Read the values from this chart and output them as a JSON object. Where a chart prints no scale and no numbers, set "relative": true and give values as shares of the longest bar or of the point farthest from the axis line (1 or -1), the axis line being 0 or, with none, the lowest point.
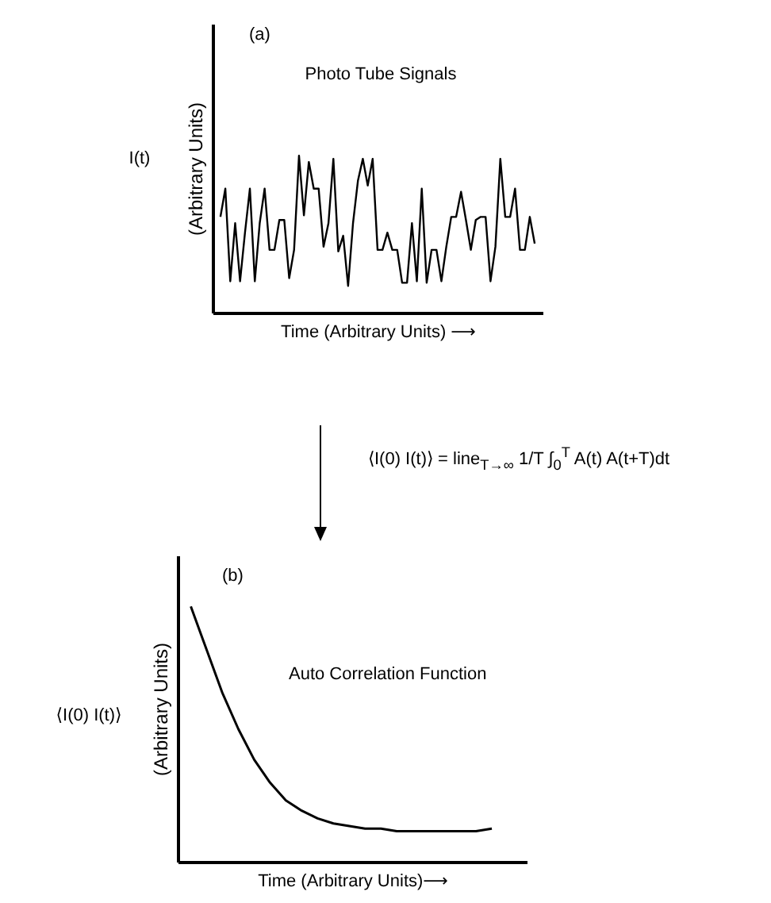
{
  "chart_data": [
    {
      "type": "line",
      "relative": true,
      "title": "Photo Tube Signals",
      "xlabel": "Time (Arbitrary Units) ⟶",
      "ylabel": "(Arbitrary Units)",
      "annotations": [
        "(a)",
        "I(t)"
      ],
      "categories": [
        null,
        null,
        null,
        null,
        null,
        null,
        null,
        null,
        null,
        null,
        null,
        null,
        null,
        null,
        null,
        null,
        null,
        null,
        null,
        null,
        null,
        null,
        null,
        null,
        null,
        null,
        null,
        null,
        null,
        null,
        null,
        null,
        null,
        null,
        null,
        null,
        null,
        null,
        null,
        null,
        null,
        null,
        null,
        null,
        null,
        null,
        null,
        null,
        null,
        null,
        null,
        null,
        null,
        null,
        null,
        null,
        null,
        null,
        null,
        null,
        null,
        null,
        null,
        null,
        null
      ],
      "series": [
        {
          "color": "#000000",
          "values": [
            0.61,
            0.79,
            0.2,
            0.57,
            0.2,
            0.51,
            0.79,
            0.2,
            0.57,
            0.79,
            0.4,
            0.4,
            0.59,
            0.59,
            0.22,
            0.4,
            1,
            0.62,
            0.96,
            0.79,
            0.79,
            0.42,
            0.57,
            0.98,
            0.39,
            0.49,
            0.17,
            0.57,
            0.84,
            0.98,
            0.81,
            0.98,
            0.4,
            0.4,
            0.51,
            0.4,
            0.4,
            0.19,
            0.19,
            0.57,
            0.2,
            0.79,
            0.19,
            0.4,
            0.4,
            0.2,
            0.42,
            0.61,
            0.61,
            0.77,
            0.59,
            0.4,
            0.59,
            0.61,
            0.61,
            0.2,
            0.42,
            0.98,
            0.61,
            0.61,
            0.79,
            0.4,
            0.4,
            0.61,
            0.44
          ]
        }
      ]
    },
    {
      "type": "line",
      "relative": true,
      "title": "Auto Correlation Function",
      "xlabel": "Time (Arbitrary Units)⟶",
      "ylabel": "(Arbitrary Units)",
      "annotations": [
        "(b)",
        "⟨I(0) I(t)⟩",
        "⟨I(0) I(t)⟩ = line$_{T→∞}$ 1/T ∫$_{0}$$^{T}$ A(t) A(t+T)dt"
      ],
      "categories": [
        null,
        null,
        null,
        null,
        null,
        null,
        null,
        null,
        null,
        null,
        null,
        null,
        null,
        null,
        null,
        null,
        null,
        null,
        null,
        null
      ],
      "series": [
        {
          "color": "#000000",
          "values": [
            1,
            0.83,
            0.66,
            0.52,
            0.4,
            0.31,
            0.24,
            0.2,
            0.17,
            0.15,
            0.14,
            0.13,
            0.13,
            0.12,
            0.12,
            0.12,
            0.12,
            0.12,
            0.12,
            0.13
          ]
        }
      ]
    }
  ]
}
